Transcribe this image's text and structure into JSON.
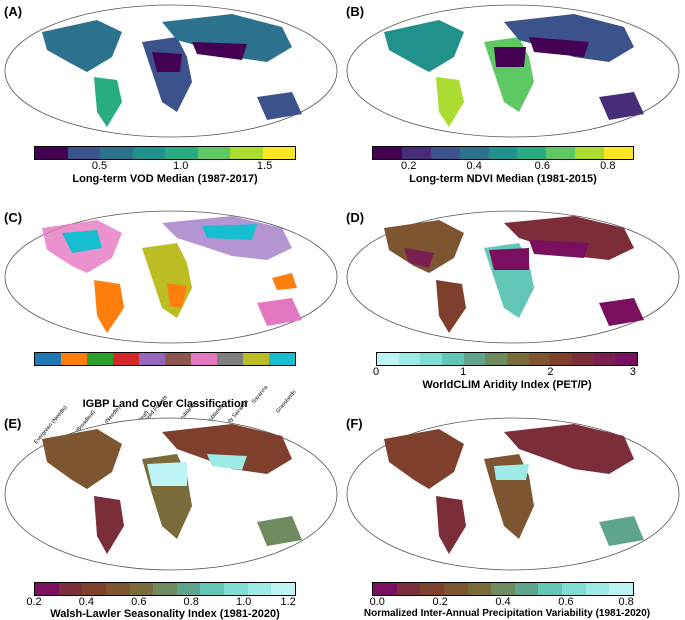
{
  "panels": [
    {
      "label": "(A)",
      "colorbar_title": "Long-term VOD Median (1987-2017)",
      "ticks": [
        "0.5",
        "1.0",
        "1.5"
      ],
      "colors": [
        "#440154",
        "#3b528b",
        "#2c718e",
        "#21918c",
        "#27ad81",
        "#5ec962",
        "#aadc32",
        "#fde725"
      ]
    },
    {
      "label": "(B)",
      "colorbar_title": "Long-term NDVI Median (1981-2015)",
      "ticks": [
        "0.2",
        "0.4",
        "0.6",
        "0.8"
      ],
      "colors": [
        "#440154",
        "#472c7a",
        "#3b528b",
        "#2c718e",
        "#21918c",
        "#27ad81",
        "#5ec962",
        "#aadc32",
        "#fde725"
      ]
    },
    {
      "label": "(C)",
      "colorbar_title": "IGBP Land Cover Classification",
      "classes": [
        "Evergreen (Needle)",
        "Evergreen (Broadleaf)",
        "Deciduous (Needle)",
        "Deciduous (Broadleaf)",
        "Mixed Forests",
        "Open Shrublands",
        "Closed Shrublands",
        "Woody Savanna",
        "Savanna",
        "Grasslands"
      ],
      "colors": [
        "#1f77b4",
        "#ff7f0e",
        "#2ca02c",
        "#d62728",
        "#9467bd",
        "#8c564b",
        "#e377c2",
        "#7f7f7f",
        "#bcbd22",
        "#17becf"
      ]
    },
    {
      "label": "(D)",
      "colorbar_title": "WorldCLIM Aridity Index (PET/P)",
      "ticks": [
        "0",
        "1",
        "2",
        "3"
      ],
      "colors": [
        "#bff4f4",
        "#9eeae6",
        "#7fddd4",
        "#63c7b8",
        "#5fa58e",
        "#6e8a5e",
        "#7a6b3b",
        "#7d5530",
        "#7e3f2c",
        "#7c2d3a",
        "#7a1f52",
        "#7a0f60"
      ]
    },
    {
      "label": "(E)",
      "colorbar_title": "Walsh-Lawler Seasonality Index (1981-2020)",
      "ticks": [
        "0.2",
        "0.4",
        "0.6",
        "0.8",
        "1.0",
        "1.2"
      ],
      "colors": [
        "#7a0f60",
        "#7c2d3a",
        "#7e3f2c",
        "#7d5530",
        "#7a6b3b",
        "#6e8a5e",
        "#5fa58e",
        "#63c7b8",
        "#7fddd4",
        "#9eeae6",
        "#bff4f4"
      ]
    },
    {
      "label": "(F)",
      "colorbar_title": "Normalized Inter-Annual Precipitation Variability (1981-2020)",
      "ticks": [
        "0.0",
        "0.2",
        "0.4",
        "0.6",
        "0.8"
      ],
      "colors": [
        "#7a0f60",
        "#7c2d3a",
        "#7e3f2c",
        "#7d5530",
        "#7a6b3b",
        "#6e8a5e",
        "#5fa58e",
        "#63c7b8",
        "#7fddd4",
        "#9eeae6",
        "#bff4f4"
      ]
    }
  ]
}
